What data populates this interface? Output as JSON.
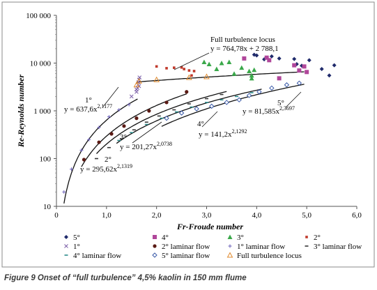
{
  "caption": "Figure 9 Onset of “full turbulence” 4,5% kaolin in 150 mm flume",
  "chart_data": {
    "type": "scatter",
    "xlabel": "Fr-Froude number",
    "ylabel": "Re-Reynolds number",
    "ylog": true,
    "xlim": [
      0,
      6
    ],
    "ylim": [
      10,
      100000
    ],
    "xticks": [
      "0",
      "1,0",
      "2,0",
      "3,0",
      "4,0",
      "5,0",
      "6,0"
    ],
    "yticks": [
      "10",
      "100",
      "1 000",
      "10 000",
      "100 000"
    ],
    "grid": false,
    "legend_position": "bottom",
    "series": [
      {
        "name": "5°",
        "color": "#1f2a6b",
        "marker": "diamond",
        "points": [
          [
            3.95,
            15000
          ],
          [
            4.0,
            14500
          ],
          [
            4.15,
            12000
          ],
          [
            4.3,
            13800
          ],
          [
            4.45,
            12500
          ],
          [
            4.75,
            12200
          ],
          [
            4.8,
            9500
          ],
          [
            4.9,
            8800
          ],
          [
            5.05,
            11500
          ],
          [
            5.3,
            7500
          ],
          [
            5.45,
            5500
          ],
          [
            5.55,
            9000
          ]
        ]
      },
      {
        "name": "4°",
        "color": "#b0469a",
        "marker": "square",
        "points": [
          [
            3.75,
            12500
          ],
          [
            4.2,
            13000
          ],
          [
            4.25,
            11500
          ],
          [
            4.45,
            4800
          ],
          [
            4.75,
            9000
          ],
          [
            4.85,
            7000
          ],
          [
            4.95,
            8500
          ],
          [
            5.0,
            6500
          ]
        ]
      },
      {
        "name": "3°",
        "color": "#3aa84a",
        "marker": "triangle",
        "points": [
          [
            2.95,
            10500
          ],
          [
            3.05,
            9500
          ],
          [
            3.2,
            7500
          ],
          [
            3.3,
            10000
          ],
          [
            3.45,
            10500
          ],
          [
            3.55,
            6000
          ],
          [
            3.7,
            8000
          ],
          [
            3.85,
            6800
          ],
          [
            3.9,
            5500
          ],
          [
            3.95,
            7200
          ],
          [
            3.9,
            4800
          ]
        ]
      },
      {
        "name": "2°",
        "color": "#c0392b",
        "marker": "smallsquare",
        "points": [
          [
            2.0,
            8500
          ],
          [
            2.2,
            7800
          ],
          [
            2.35,
            8000
          ],
          [
            2.5,
            8100
          ],
          [
            2.55,
            7500
          ],
          [
            2.65,
            7000
          ],
          [
            2.7,
            5500
          ],
          [
            2.75,
            6800
          ]
        ]
      },
      {
        "name": "1°",
        "color": "#7b5fa8",
        "marker": "cross",
        "points": [
          [
            1.5,
            2000
          ],
          [
            1.6,
            2500
          ],
          [
            1.62,
            3000
          ],
          [
            1.63,
            3500
          ],
          [
            1.64,
            4000
          ],
          [
            1.65,
            4500
          ],
          [
            1.66,
            5000
          ],
          [
            1.6,
            2800
          ],
          [
            1.65,
            3300
          ]
        ]
      },
      {
        "name": "2° laminar flow",
        "color": "#5a1a14",
        "marker": "dot",
        "points": [
          [
            0.55,
            95
          ],
          [
            0.85,
            220
          ],
          [
            1.1,
            330
          ],
          [
            1.35,
            480
          ],
          [
            1.6,
            700
          ],
          [
            1.85,
            1000
          ],
          [
            2.2,
            1500
          ],
          [
            2.6,
            2500
          ]
        ]
      },
      {
        "name": "1° laminar flow",
        "color": "#6a5fb8",
        "marker": "plus",
        "points": [
          [
            0.15,
            20
          ],
          [
            0.3,
            60
          ],
          [
            0.5,
            150
          ],
          [
            0.65,
            250
          ],
          [
            0.85,
            450
          ],
          [
            1.05,
            750
          ],
          [
            1.25,
            1050
          ],
          [
            1.45,
            1350
          ]
        ]
      },
      {
        "name": "3° laminar flow",
        "color": "#333333",
        "marker": "dash",
        "points": [
          [
            0.8,
            100
          ],
          [
            1.05,
            170
          ],
          [
            1.3,
            260
          ],
          [
            1.55,
            400
          ],
          [
            1.8,
            580
          ],
          [
            2.05,
            780
          ],
          [
            2.35,
            1050
          ],
          [
            2.65,
            1400
          ],
          [
            3.0,
            1800
          ],
          [
            3.3,
            2200
          ]
        ]
      },
      {
        "name": "4° laminar flow",
        "color": "#2a8a8a",
        "marker": "dash",
        "points": [
          [
            1.25,
            240
          ],
          [
            1.5,
            350
          ],
          [
            1.8,
            520
          ],
          [
            2.1,
            700
          ],
          [
            2.4,
            950
          ],
          [
            2.7,
            1200
          ],
          [
            3.0,
            1500
          ],
          [
            3.3,
            1700
          ],
          [
            3.6,
            2000
          ],
          [
            3.9,
            2400
          ]
        ]
      },
      {
        "name": "5° laminar flow",
        "color": "#3a5aa8",
        "marker": "opendiamond",
        "points": [
          [
            2.2,
            700
          ],
          [
            2.5,
            900
          ],
          [
            2.8,
            1100
          ],
          [
            3.1,
            1250
          ],
          [
            3.4,
            1500
          ],
          [
            3.65,
            1700
          ],
          [
            3.85,
            2100
          ],
          [
            4.05,
            2500
          ],
          [
            4.3,
            3000
          ],
          [
            4.6,
            3500
          ],
          [
            4.85,
            3800
          ]
        ]
      },
      {
        "name": "Full turbulence locus",
        "color": "#e08a2e",
        "marker": "opentriangle",
        "points": [
          [
            1.6,
            3500
          ],
          [
            1.65,
            4200
          ],
          [
            2.0,
            4500
          ],
          [
            2.65,
            5000
          ],
          [
            3.0,
            5200
          ]
        ]
      }
    ],
    "fits": [
      {
        "label_line1": "Full turbulence locus",
        "label_line2": "y = 764,78x + 2 788,1",
        "kind": "linear",
        "a": 764.78,
        "b": 2788.1,
        "xrange": [
          1.6,
          4.95
        ]
      },
      {
        "label_line1": "1°",
        "label_line2": "y = 637,6x",
        "exponent": "2,1177",
        "kind": "power",
        "a": 637.6,
        "b": 2.1177,
        "xrange": [
          0.15,
          1.62
        ]
      },
      {
        "label_line1": "2°",
        "label_line2": "y = 295,62x",
        "exponent": "2,1319",
        "kind": "power",
        "a": 295.62,
        "b": 2.1319,
        "xrange": [
          0.5,
          2.6
        ]
      },
      {
        "label_line1": "3°",
        "label_line2": "y = 201,27x",
        "exponent": "2,0738",
        "kind": "power",
        "a": 201.27,
        "b": 2.0738,
        "xrange": [
          0.8,
          3.4
        ]
      },
      {
        "label_line1": "4°",
        "label_line2": "y = 141,2x",
        "exponent": "2,1292",
        "kind": "power",
        "a": 141.2,
        "b": 2.1292,
        "xrange": [
          1.2,
          4.1
        ]
      },
      {
        "label_line1": "5°",
        "label_line2": "y = 81,585x",
        "exponent": "2,3697",
        "kind": "power",
        "a": 81.585,
        "b": 2.3697,
        "xrange": [
          2.1,
          4.95
        ]
      }
    ]
  }
}
